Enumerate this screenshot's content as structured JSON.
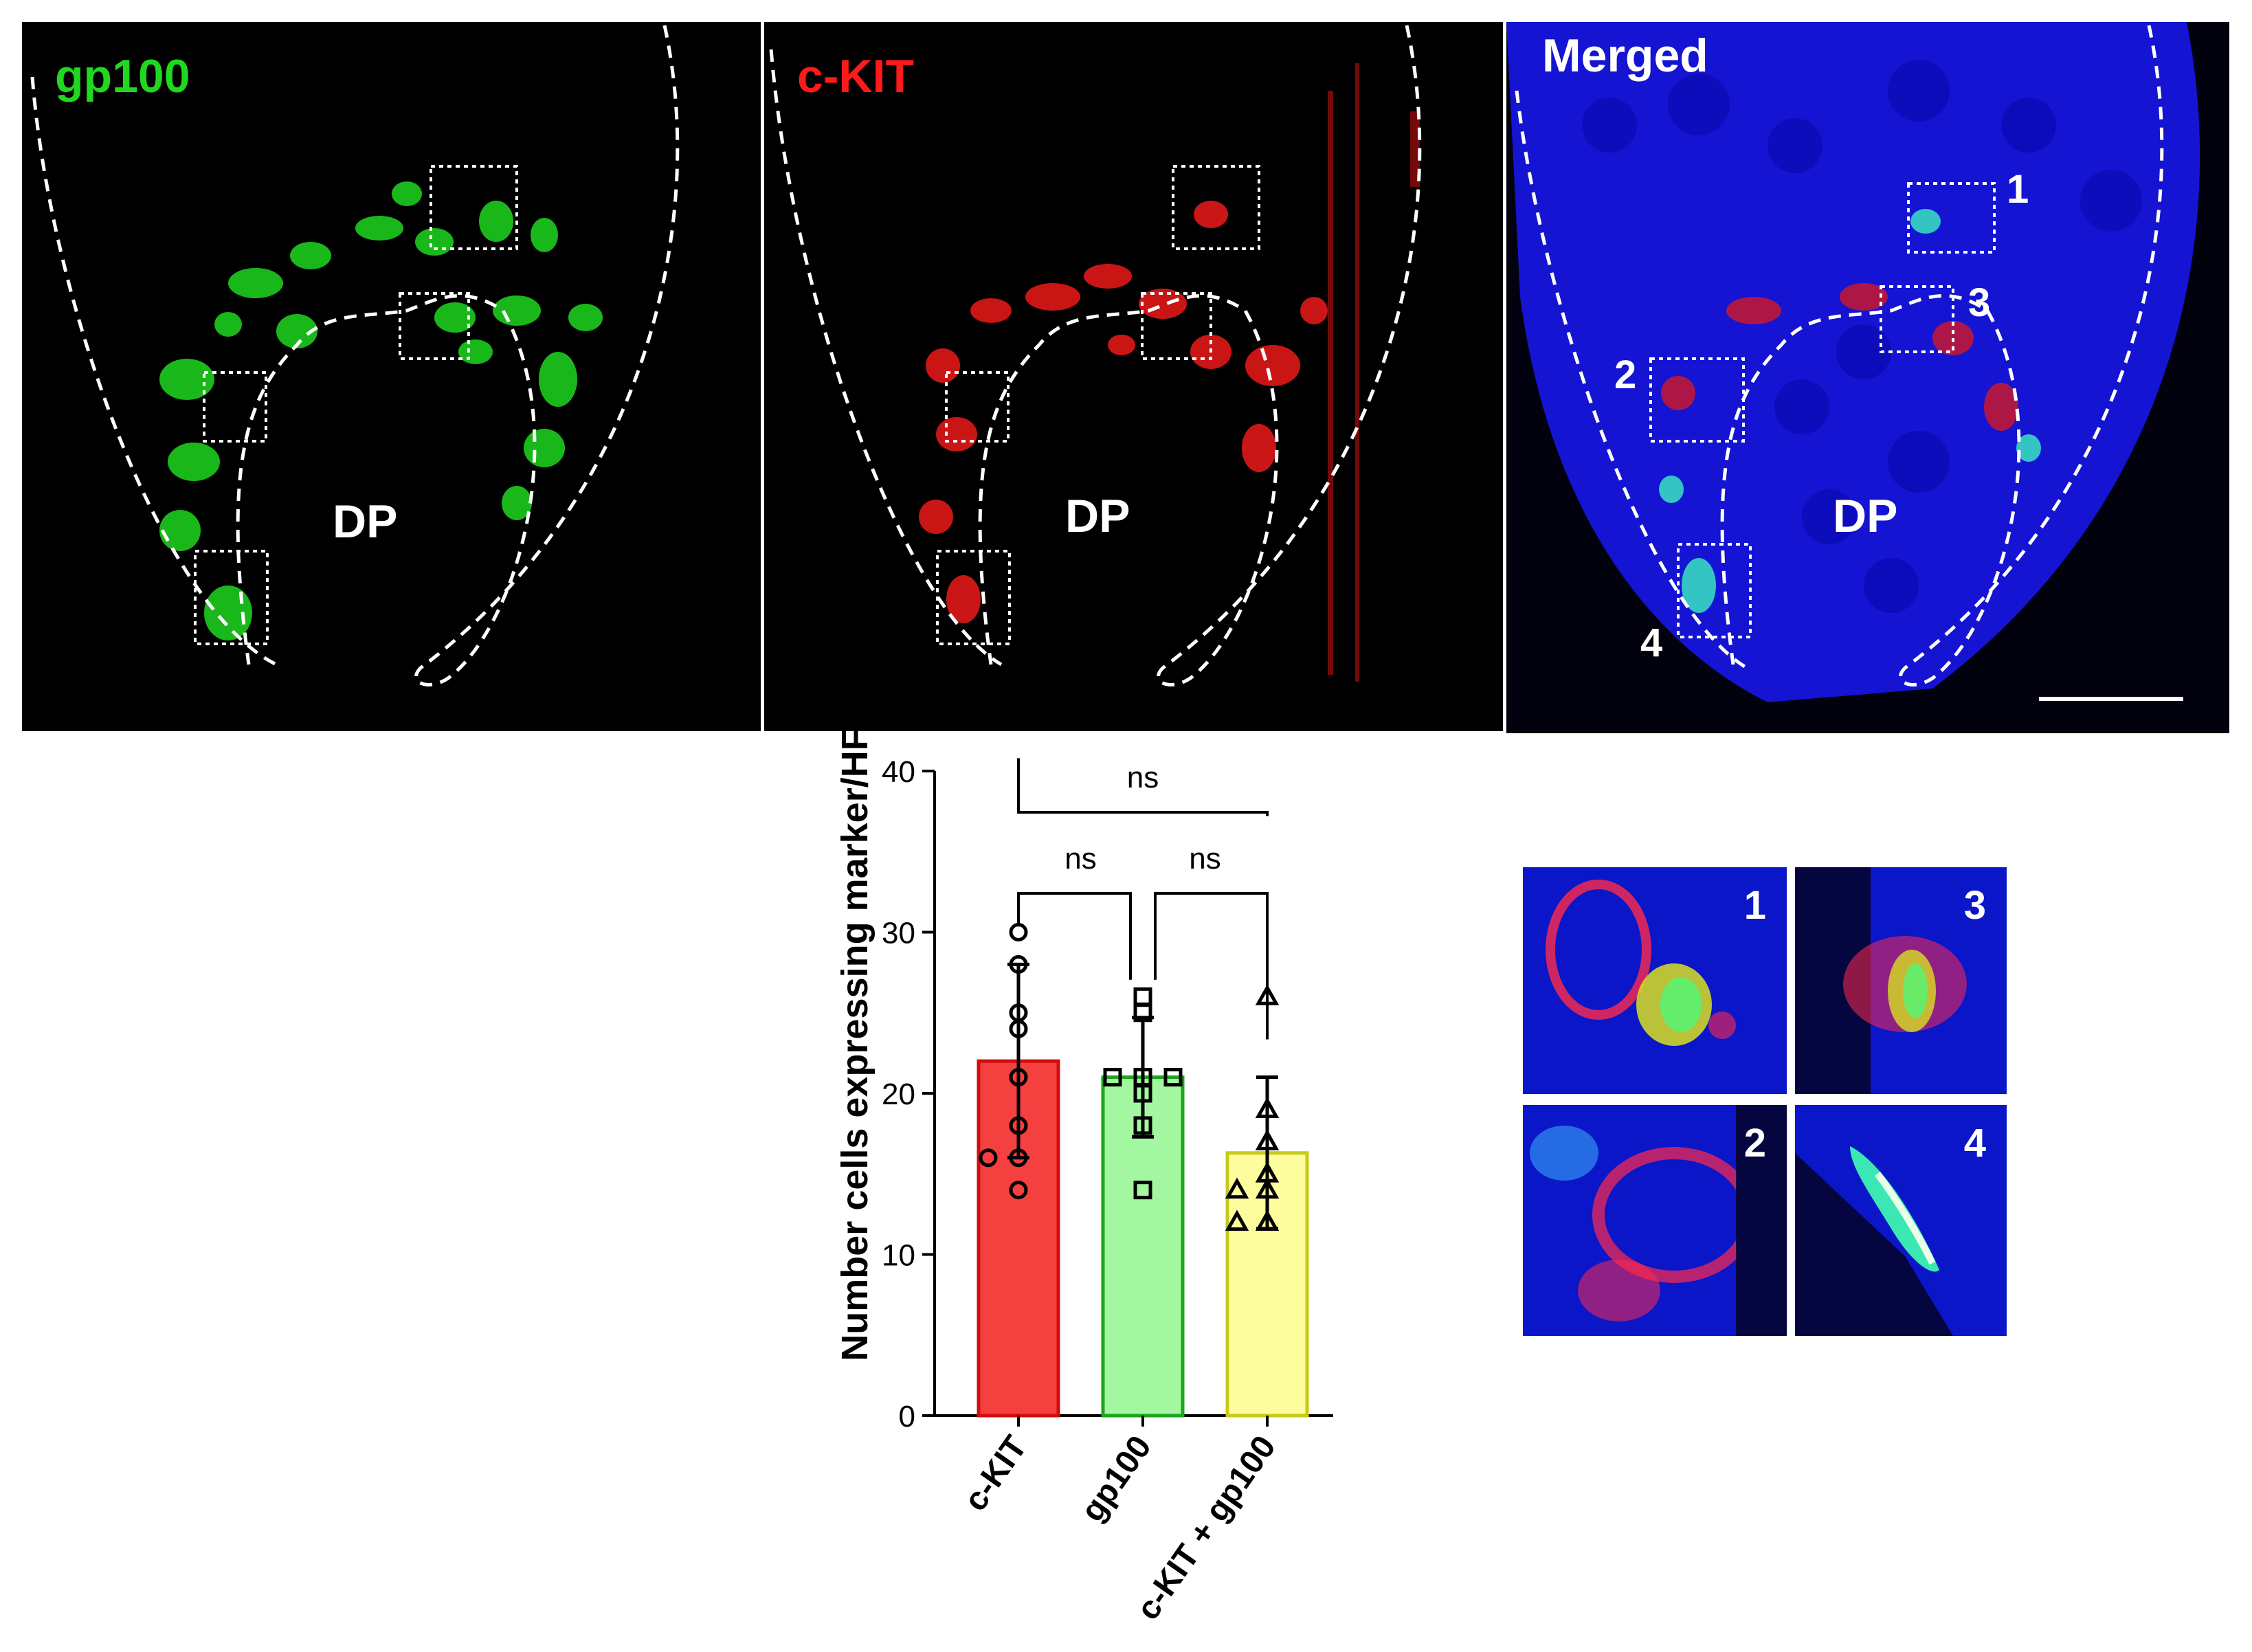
{
  "panels": [
    {
      "title": "gp100",
      "title_color": "#1fd81f",
      "dp_label": "DP"
    },
    {
      "title": "c-KIT",
      "title_color": "#ff1a1a",
      "dp_label": "DP"
    },
    {
      "title": "Merged",
      "title_color": "#ffffff",
      "dp_label": "DP",
      "box_numbers": [
        "1",
        "3",
        "2",
        "4"
      ]
    }
  ],
  "insets": [
    {
      "number": "1"
    },
    {
      "number": "3"
    },
    {
      "number": "2"
    },
    {
      "number": "4"
    }
  ],
  "colors": {
    "green": "#1fd81f",
    "red": "#ff1a1a",
    "blue": "#1414d2"
  },
  "chart_data": {
    "type": "bar",
    "title": "",
    "ylabel": "Number cells expressing marker/HF",
    "xlabel": "",
    "ylim": [
      0,
      40
    ],
    "yticks": [
      "0",
      "10",
      "20",
      "30",
      "40"
    ],
    "categories": [
      "c-KIT",
      "gp100",
      "c-KIT + gp100"
    ],
    "values": [
      22,
      21,
      16.3
    ],
    "sd": [
      6,
      3.7,
      4.7
    ],
    "bar_colors": [
      "#f4403f",
      "#a2f7a0",
      "#fdfd9d"
    ],
    "bar_edges": [
      "#d10d0d",
      "#1ea41e",
      "#c9c91a"
    ],
    "points": [
      [
        30,
        28,
        25,
        24,
        21,
        18,
        16,
        16,
        14
      ],
      [
        26,
        25,
        21,
        21,
        21,
        20,
        18,
        14
      ],
      [
        26,
        19,
        17,
        15,
        14,
        14,
        12,
        12
      ]
    ],
    "markers": [
      "circle",
      "square",
      "triangle"
    ],
    "significance": [
      {
        "from": 0,
        "to": 2,
        "label": "ns"
      },
      {
        "from": 0,
        "to": 1,
        "label": "ns"
      },
      {
        "from": 1,
        "to": 2,
        "label": "ns"
      }
    ]
  }
}
